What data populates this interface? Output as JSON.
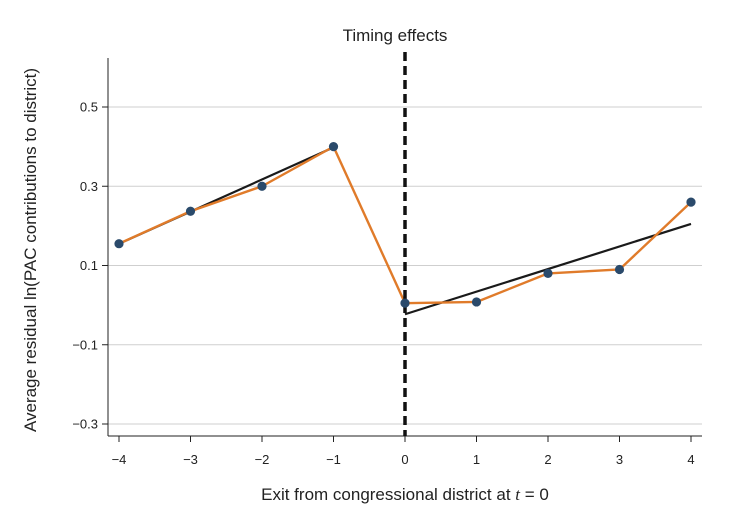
{
  "chart_data": {
    "type": "line",
    "title": "Timing effects",
    "xlabel": "Exit from congressional district at t = 0",
    "xlabel_parts": {
      "prefix": "Exit from congressional district at ",
      "var": "t",
      "suffix": " = 0"
    },
    "ylabel": "Average residual ln(PAC contributions to district)",
    "x_ticks": [
      "−4",
      "−3",
      "−2",
      "−1",
      "0",
      "1",
      "2",
      "3",
      "4"
    ],
    "x_tick_values": [
      -4,
      -3,
      -2,
      -1,
      0,
      1,
      2,
      3,
      4
    ],
    "y_ticks": [
      "0.5",
      "0.3",
      "0.1",
      "−0.1",
      "−0.3"
    ],
    "y_tick_values": [
      0.5,
      0.3,
      0.1,
      -0.1,
      -0.3
    ],
    "xlim": [
      -4.15,
      4.15
    ],
    "ylim": [
      -0.34,
      0.65
    ],
    "grid": "horizontal",
    "event_line_x": 0,
    "series": [
      {
        "kind": "observed",
        "color": "#e07b2a",
        "x": [
          -4,
          -3,
          -2,
          -1,
          0,
          1,
          2,
          3,
          4
        ],
        "y": [
          0.155,
          0.237,
          0.3,
          0.4,
          0.005,
          0.008,
          0.08,
          0.09,
          0.26
        ]
      }
    ],
    "trend_lines": [
      {
        "color": "#1a1a1a",
        "x": [
          -4,
          -1
        ],
        "y": [
          0.155,
          0.398
        ]
      },
      {
        "color": "#1a1a1a",
        "x": [
          0,
          4
        ],
        "y": [
          -0.023,
          0.205
        ]
      }
    ],
    "marker_color": "#2a4a6b"
  }
}
